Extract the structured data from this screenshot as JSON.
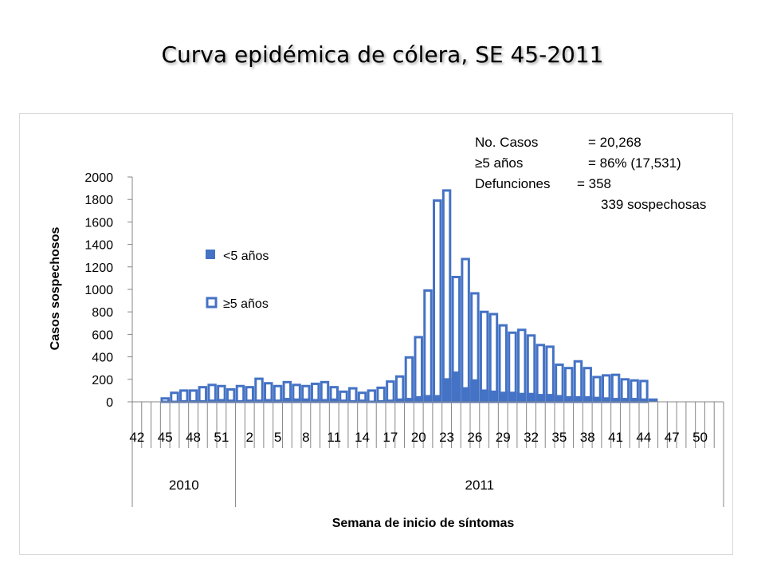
{
  "slide": {
    "title": "Curva epidémica de cólera, SE 45-2011"
  },
  "stats": {
    "rows": [
      {
        "label": "No. Casos",
        "value": "= 20,268"
      },
      {
        "label": "≥5 años",
        "value": "= 86% (17,531)"
      },
      {
        "label": "Defunciones",
        "value": "= 358"
      },
      {
        "label": "",
        "value": "339 sospechosas"
      }
    ]
  },
  "colors": {
    "under5": "#4472c4",
    "over5_stroke": "#4472c4",
    "over5_fill": "#ffffff",
    "axis": "#868686"
  },
  "chart_data": {
    "type": "bar",
    "title": "",
    "xlabel": "Semana de inicio de síntomas",
    "ylabel": "Casos sospechosos",
    "ylim": [
      0,
      2000
    ],
    "yticks": [
      0,
      200,
      400,
      600,
      800,
      1000,
      1200,
      1400,
      1600,
      1800,
      2000
    ],
    "grid": false,
    "legend_position": "left, inside plot",
    "categories": [
      42,
      43,
      44,
      45,
      46,
      47,
      48,
      49,
      50,
      51,
      52,
      1,
      2,
      3,
      4,
      5,
      6,
      7,
      8,
      9,
      10,
      11,
      12,
      13,
      14,
      15,
      16,
      17,
      18,
      19,
      20,
      21,
      22,
      23,
      24,
      25,
      26,
      27,
      28,
      29,
      30,
      31,
      32,
      33,
      34,
      35,
      36,
      37,
      38,
      39,
      40,
      41,
      42,
      43,
      44,
      45,
      46,
      47,
      48,
      49,
      50,
      51,
      52
    ],
    "xtick_labels": [
      "42",
      "45",
      "48",
      "51",
      "2",
      "5",
      "8",
      "11",
      "14",
      "17",
      "20",
      "23",
      "26",
      "29",
      "32",
      "35",
      "38",
      "41",
      "44",
      "47",
      "50"
    ],
    "year_groups": [
      {
        "label": "2010",
        "weeks": 11
      },
      {
        "label": "2011",
        "weeks": 52
      }
    ],
    "series": [
      {
        "name": "<5 años",
        "style": "filled",
        "values": [
          0,
          0,
          0,
          5,
          10,
          15,
          15,
          15,
          20,
          25,
          20,
          15,
          20,
          20,
          25,
          20,
          35,
          30,
          30,
          25,
          25,
          30,
          20,
          15,
          20,
          10,
          15,
          20,
          30,
          35,
          50,
          60,
          60,
          210,
          270,
          130,
          200,
          110,
          100,
          90,
          90,
          80,
          80,
          70,
          70,
          60,
          50,
          50,
          50,
          45,
          40,
          35,
          35,
          35,
          30,
          30,
          0,
          0,
          0,
          0,
          0,
          0,
          0
        ]
      },
      {
        "name": "≥5 años",
        "style": "outline",
        "values": [
          0,
          0,
          0,
          30,
          80,
          100,
          100,
          130,
          150,
          140,
          110,
          140,
          130,
          205,
          165,
          140,
          175,
          150,
          140,
          160,
          175,
          130,
          90,
          120,
          80,
          100,
          125,
          180,
          225,
          395,
          575,
          990,
          1790,
          1880,
          1110,
          1270,
          965,
          800,
          780,
          680,
          615,
          640,
          590,
          505,
          490,
          330,
          300,
          360,
          300,
          220,
          235,
          240,
          200,
          190,
          185,
          0,
          0,
          0,
          0,
          0,
          0,
          0,
          0
        ]
      }
    ]
  }
}
